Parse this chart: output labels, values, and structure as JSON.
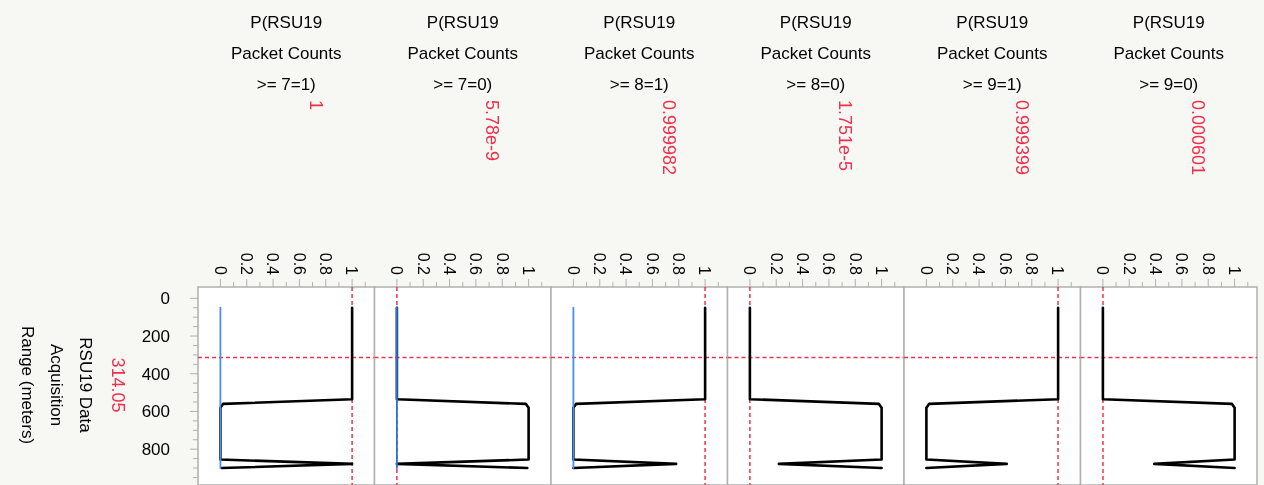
{
  "chart_data": [
    {
      "type": "line",
      "xlabel": "P(RSU19 Packet Counts >= 7=1)",
      "ylabel": "RSU19 Data Acquisition Range (meters)",
      "xlim": [
        -0.17,
        1.17
      ],
      "xticks": [
        0,
        {
          "value": 0.1,
          "label": null
        },
        0.2,
        {
          "value": 0.3,
          "label": null
        },
        0.4,
        {
          "value": 0.5,
          "label": null
        },
        0.6,
        {
          "value": 0.7,
          "label": null
        },
        0.8,
        {
          "value": 0.9,
          "label": null
        },
        1,
        {
          "value": 1.1,
          "label": null
        }
      ],
      "ylim": [
        990,
        -60
      ],
      "yticks": [
        0,
        {
          "value": 50,
          "label": null
        },
        {
          "value": 100,
          "label": null
        },
        {
          "value": 150,
          "label": null
        },
        200,
        {
          "value": 250,
          "label": null
        },
        {
          "value": 300,
          "label": null
        },
        {
          "value": 350,
          "label": null
        },
        400,
        {
          "value": 450,
          "label": null
        },
        {
          "value": 500,
          "label": null
        },
        {
          "value": 550,
          "label": null
        },
        600,
        {
          "value": 650,
          "label": null
        },
        {
          "value": 700,
          "label": null
        },
        {
          "value": 750,
          "label": null
        },
        800,
        {
          "value": 850,
          "label": null
        },
        {
          "value": 900,
          "label": null
        },
        {
          "value": 950,
          "label": null
        }
      ],
      "series": [
        {
          "color": "#000000",
          "x": [
            1,
            1,
            0.02,
            0,
            0,
            1,
            0.01
          ],
          "values": [
            50,
            535,
            560,
            580,
            855,
            878,
            900
          ]
        },
        {
          "color": "#4a8ff0",
          "x": [
            0,
            0
          ],
          "values": [
            50,
            900
          ]
        }
      ],
      "ref_lines": [
        {
          "axis": "y",
          "value": 314.05,
          "label": "314.05",
          "color": "#f0304c",
          "line_style": "dashed"
        },
        {
          "axis": "x",
          "value": 1,
          "label": "1",
          "color": "#f0304c",
          "line_style": "dashed"
        }
      ]
    },
    {
      "type": "line",
      "xlabel": "P(RSU19 Packet Counts >= 7=0)",
      "tick_labels": "x",
      "xlim": [
        -0.17,
        1.17
      ],
      "xticks": [
        0,
        {
          "value": 0.1,
          "label": null
        },
        0.2,
        {
          "value": 0.3,
          "label": null
        },
        0.4,
        {
          "value": 0.5,
          "label": null
        },
        0.6,
        {
          "value": 0.7,
          "label": null
        },
        0.8,
        {
          "value": 0.9,
          "label": null
        },
        1,
        {
          "value": 1.1,
          "label": null
        }
      ],
      "ylim": [
        990,
        -60
      ],
      "series": [
        {
          "color": "#000000",
          "x": [
            0,
            0,
            0.98,
            1,
            1,
            0,
            0.99
          ],
          "values": [
            50,
            535,
            560,
            580,
            855,
            878,
            900
          ]
        },
        {
          "color": "#2f6fe0",
          "x": [
            0,
            0
          ],
          "values": [
            50,
            900
          ]
        }
      ],
      "ref_lines": [
        {
          "axis": "y",
          "value": 314.05,
          "color": "#f0304c",
          "line_style": "dashed"
        },
        {
          "axis": "x",
          "value": 5.78e-09,
          "label": "5.78e-9",
          "color": "#f0304c",
          "line_style": "dashed"
        }
      ]
    },
    {
      "type": "line",
      "xlabel": "P(RSU19 Packet Counts >= 8=1)",
      "tick_labels": "x",
      "xlim": [
        -0.17,
        1.17
      ],
      "xticks": [
        0,
        {
          "value": 0.1,
          "label": null
        },
        0.2,
        {
          "value": 0.3,
          "label": null
        },
        0.4,
        {
          "value": 0.5,
          "label": null
        },
        0.6,
        {
          "value": 0.7,
          "label": null
        },
        0.8,
        {
          "value": 0.9,
          "label": null
        },
        1,
        {
          "value": 1.1,
          "label": null
        }
      ],
      "ylim": [
        990,
        -60
      ],
      "series": [
        {
          "color": "#000000",
          "x": [
            1,
            1,
            0.02,
            0,
            0,
            0.78,
            0
          ],
          "values": [
            50,
            535,
            560,
            580,
            855,
            878,
            900
          ]
        },
        {
          "color": "#4a8ff0",
          "x": [
            0,
            0
          ],
          "values": [
            50,
            900
          ]
        }
      ],
      "ref_lines": [
        {
          "axis": "y",
          "value": 314.05,
          "color": "#f0304c",
          "line_style": "dashed"
        },
        {
          "axis": "x",
          "value": 0.999982,
          "label": "0.999982",
          "color": "#f0304c",
          "line_style": "dashed"
        }
      ]
    },
    {
      "type": "line",
      "xlabel": "P(RSU19 Packet Counts >= 8=0)",
      "tick_labels": "x",
      "xlim": [
        -0.17,
        1.17
      ],
      "xticks": [
        0,
        {
          "value": 0.1,
          "label": null
        },
        0.2,
        {
          "value": 0.3,
          "label": null
        },
        0.4,
        {
          "value": 0.5,
          "label": null
        },
        0.6,
        {
          "value": 0.7,
          "label": null
        },
        0.8,
        {
          "value": 0.9,
          "label": null
        },
        1,
        {
          "value": 1.1,
          "label": null
        }
      ],
      "ylim": [
        990,
        -60
      ],
      "series": [
        {
          "color": "#000000",
          "x": [
            0,
            0,
            0.98,
            1,
            1,
            0.22,
            1
          ],
          "values": [
            50,
            535,
            560,
            580,
            855,
            878,
            900
          ]
        }
      ],
      "ref_lines": [
        {
          "axis": "y",
          "value": 314.05,
          "color": "#f0304c",
          "line_style": "dashed"
        },
        {
          "axis": "x",
          "value": 1.751e-05,
          "label": "1.751e-5",
          "color": "#f0304c",
          "line_style": "dashed"
        }
      ]
    },
    {
      "type": "line",
      "xlabel": "P(RSU19 Packet Counts >= 9=1)",
      "tick_labels": "x",
      "xlim": [
        -0.17,
        1.17
      ],
      "xticks": [
        0,
        {
          "value": 0.1,
          "label": null
        },
        0.2,
        {
          "value": 0.3,
          "label": null
        },
        0.4,
        {
          "value": 0.5,
          "label": null
        },
        0.6,
        {
          "value": 0.7,
          "label": null
        },
        0.8,
        {
          "value": 0.9,
          "label": null
        },
        1,
        {
          "value": 1.1,
          "label": null
        }
      ],
      "ylim": [
        990,
        -60
      ],
      "series": [
        {
          "color": "#000000",
          "x": [
            1,
            1,
            0.02,
            0,
            0,
            0.61,
            0
          ],
          "values": [
            50,
            535,
            560,
            580,
            855,
            878,
            900
          ]
        }
      ],
      "ref_lines": [
        {
          "axis": "y",
          "value": 314.05,
          "color": "#f0304c",
          "line_style": "dashed"
        },
        {
          "axis": "x",
          "value": 0.999399,
          "label": "0.999399",
          "color": "#f0304c",
          "line_style": "dashed"
        }
      ]
    },
    {
      "type": "line",
      "xlabel": "P(RSU19 Packet Counts >= 9=0)",
      "tick_labels": "x",
      "xlim": [
        -0.17,
        1.17
      ],
      "xticks": [
        0,
        {
          "value": 0.1,
          "label": null
        },
        0.2,
        {
          "value": 0.3,
          "label": null
        },
        0.4,
        {
          "value": 0.5,
          "label": null
        },
        0.6,
        {
          "value": 0.7,
          "label": null
        },
        0.8,
        {
          "value": 0.9,
          "label": null
        },
        1,
        {
          "value": 1.1,
          "label": null
        }
      ],
      "ylim": [
        990,
        -60
      ],
      "series": [
        {
          "color": "#000000",
          "x": [
            0,
            0,
            0.98,
            1,
            1,
            0.39,
            1
          ],
          "values": [
            50,
            535,
            560,
            580,
            855,
            878,
            900
          ]
        }
      ],
      "ref_lines": [
        {
          "axis": "y",
          "value": 314.05,
          "color": "#f0304c",
          "line_style": "dashed"
        },
        {
          "axis": "x",
          "value": 0.000601,
          "label": "0.000601",
          "color": "#f0304c",
          "line_style": "dashed"
        }
      ]
    }
  ]
}
